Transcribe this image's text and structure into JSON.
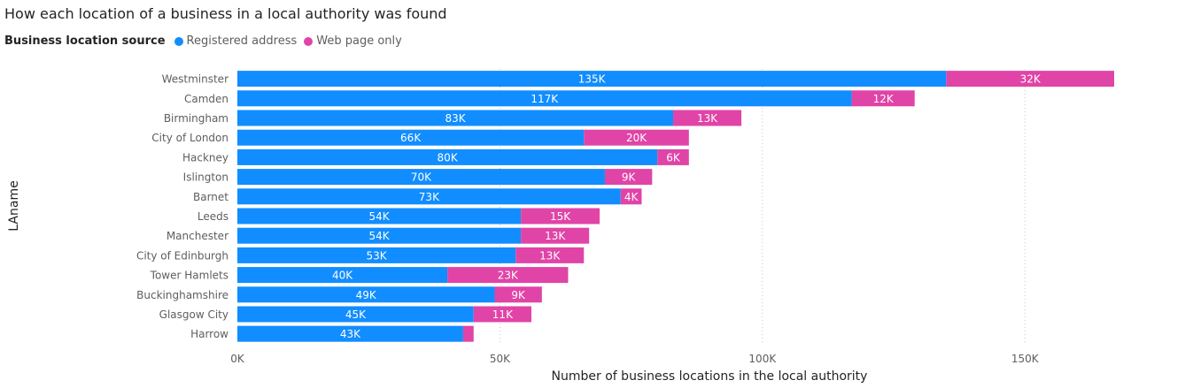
{
  "chart_data": {
    "type": "bar",
    "orientation": "horizontal",
    "stacked": true,
    "title": "How each location of a business in a local authority was found",
    "legend_title": "Business location source",
    "legend_position": "top-left",
    "xlabel": "Number of business locations in the local authority",
    "ylabel": "LAname",
    "xlim": [
      0,
      167000
    ],
    "x_ticks": [
      0,
      50000,
      100000,
      150000
    ],
    "x_tick_labels": [
      "0K",
      "50K",
      "100K",
      "150K"
    ],
    "grid": true,
    "categories": [
      "Westminster",
      "Camden",
      "Birmingham",
      "City of London",
      "Hackney",
      "Islington",
      "Barnet",
      "Leeds",
      "Manchester",
      "City of Edinburgh",
      "Tower Hamlets",
      "Buckinghamshire",
      "Glasgow City",
      "Harrow"
    ],
    "series": [
      {
        "name": "Registered address",
        "color": "#118DFF",
        "values": [
          135000,
          117000,
          83000,
          66000,
          80000,
          70000,
          73000,
          54000,
          54000,
          53000,
          40000,
          49000,
          45000,
          43000
        ],
        "labels": [
          "135K",
          "117K",
          "83K",
          "66K",
          "80K",
          "70K",
          "73K",
          "54K",
          "54K",
          "53K",
          "40K",
          "49K",
          "45K",
          "43K"
        ]
      },
      {
        "name": "Web page only",
        "color": "#E044A7",
        "values": [
          32000,
          12000,
          13000,
          20000,
          6000,
          9000,
          4000,
          15000,
          13000,
          13000,
          23000,
          9000,
          11000,
          2000
        ],
        "labels": [
          "32K",
          "12K",
          "13K",
          "20K",
          "6K",
          "9K",
          "4K",
          "15K",
          "13K",
          "13K",
          "23K",
          "9K",
          "11K",
          ""
        ]
      }
    ]
  }
}
